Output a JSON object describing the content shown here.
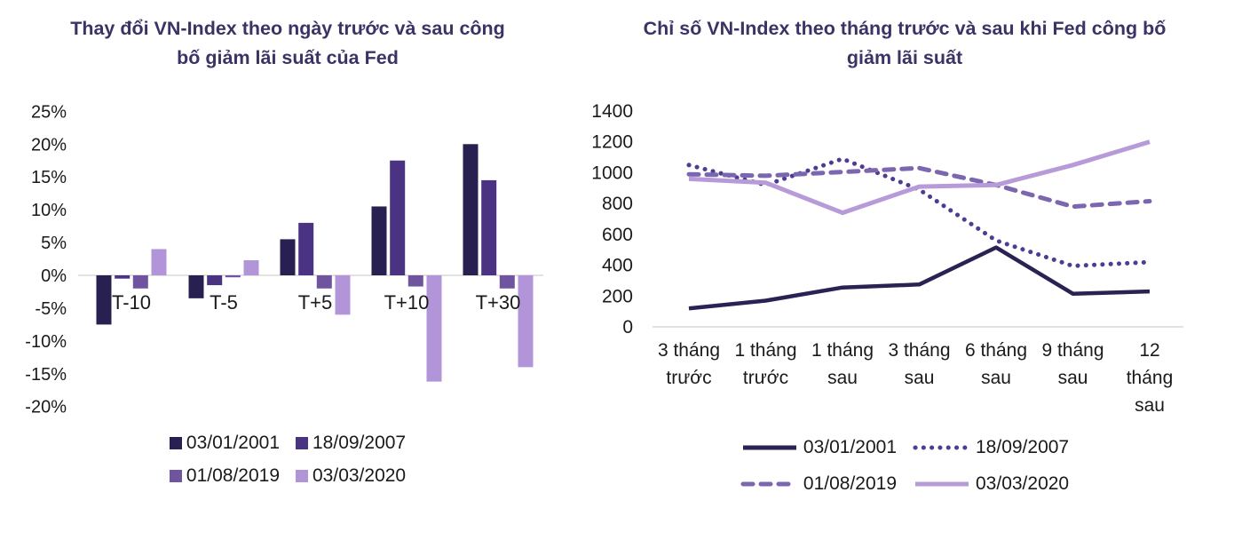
{
  "colors": {
    "title": "#3b3366",
    "axis_line": "#d9d9d9",
    "tick_text": "#1a1a1a",
    "series_2001": "#272050",
    "series_2007": "#4b3384",
    "series_2019": "#6f54a0",
    "series_2020": "#b295d8"
  },
  "chart_data": [
    {
      "type": "bar",
      "title": "Thay đổi VN-Index theo ngày trước và sau công bố giảm lãi suất của Fed",
      "title_lines": [
        "Thay đổi VN-Index theo ngày trước và sau công",
        "bố giảm lãi suất của Fed"
      ],
      "categories": [
        "T-10",
        "T-5",
        "T+5",
        "T+10",
        "T+30"
      ],
      "series": [
        {
          "name": "03/01/2001",
          "color": "#272050",
          "values": [
            -7.5,
            -3.5,
            5.5,
            10.5,
            20
          ]
        },
        {
          "name": "18/09/2007",
          "color": "#4b3384",
          "values": [
            -0.5,
            -1.5,
            8,
            17.5,
            14.5
          ]
        },
        {
          "name": "01/08/2019",
          "color": "#6f54a0",
          "values": [
            -2,
            -0.3,
            -2,
            -1.7,
            -2
          ]
        },
        {
          "name": "03/03/2020",
          "color": "#b295d8",
          "values": [
            4,
            2.3,
            -6,
            -16.2,
            -14
          ]
        }
      ],
      "ylim": [
        -20,
        25
      ],
      "yticks": [
        {
          "v": 25,
          "label": "25%"
        },
        {
          "v": 20,
          "label": "20%"
        },
        {
          "v": 15,
          "label": "15%"
        },
        {
          "v": 10,
          "label": "10%"
        },
        {
          "v": 5,
          "label": "5%"
        },
        {
          "v": 0,
          "label": "0%"
        },
        {
          "v": -5,
          "label": "-5%"
        },
        {
          "v": -10,
          "label": "-10%"
        },
        {
          "v": -15,
          "label": "-15%"
        },
        {
          "v": -20,
          "label": "-20%"
        }
      ],
      "xlabel": "",
      "ylabel": "",
      "grid": false,
      "legend_position": "bottom"
    },
    {
      "type": "line",
      "title": "Chỉ số VN-Index theo tháng trước và sau khi Fed công bố giảm lãi suất",
      "title_lines": [
        "Chỉ số VN-Index theo tháng trước và sau khi Fed công bố",
        "giảm lãi suất"
      ],
      "categories": [
        "3 tháng trước",
        "1 tháng trước",
        "1 tháng sau",
        "3 tháng sau",
        "6 tháng sau",
        "9 tháng sau",
        "12 tháng sau"
      ],
      "category_lines": [
        [
          "3 tháng",
          "trước"
        ],
        [
          "1 tháng",
          "trước"
        ],
        [
          "1 tháng",
          "sau"
        ],
        [
          "3 tháng",
          "sau"
        ],
        [
          "6 tháng",
          "sau"
        ],
        [
          "9 tháng",
          "sau"
        ],
        [
          "12",
          "tháng",
          "sau"
        ]
      ],
      "series": [
        {
          "name": "03/01/2001",
          "color": "#2b2153",
          "style": "solid",
          "values": [
            120,
            170,
            255,
            275,
            515,
            215,
            230
          ]
        },
        {
          "name": "18/09/2007",
          "color": "#4f3c92",
          "style": "dotted",
          "values": [
            1050,
            920,
            1090,
            890,
            560,
            395,
            420
          ]
        },
        {
          "name": "01/08/2019",
          "color": "#7b66af",
          "style": "dashed",
          "values": [
            990,
            980,
            1005,
            1030,
            920,
            780,
            815
          ]
        },
        {
          "name": "03/03/2020",
          "color": "#b79bd9",
          "style": "solid",
          "values": [
            960,
            935,
            740,
            910,
            920,
            1050,
            1200
          ]
        }
      ],
      "ylim": [
        0,
        1400
      ],
      "yticks": [
        {
          "v": 1400,
          "label": "1400"
        },
        {
          "v": 1200,
          "label": "1200"
        },
        {
          "v": 1000,
          "label": "1000"
        },
        {
          "v": 800,
          "label": "800"
        },
        {
          "v": 600,
          "label": "600"
        },
        {
          "v": 400,
          "label": "400"
        },
        {
          "v": 200,
          "label": "200"
        },
        {
          "v": 0,
          "label": "0"
        }
      ],
      "xlabel": "",
      "ylabel": "",
      "grid": false,
      "legend_position": "bottom"
    }
  ]
}
